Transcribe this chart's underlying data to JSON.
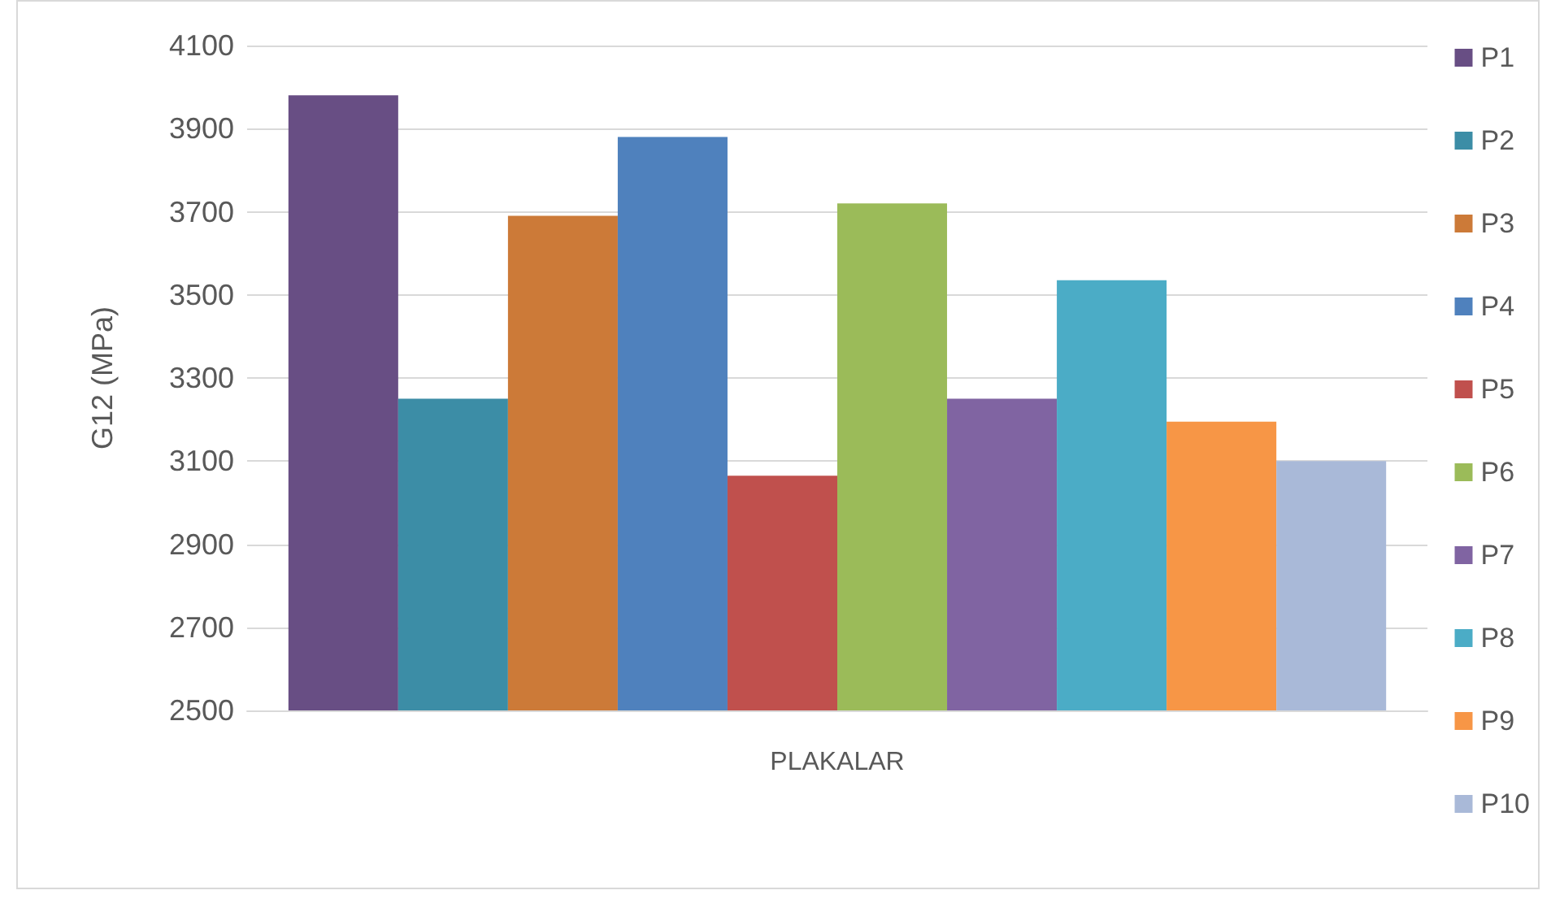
{
  "chart_data": {
    "type": "bar",
    "ylabel": "G12 (MPa)",
    "categories": [
      "PLAKALAR"
    ],
    "series": [
      {
        "name": "P1",
        "color": "#684e84",
        "values": [
          3980
        ]
      },
      {
        "name": "P2",
        "color": "#3c8da6",
        "values": [
          3250
        ]
      },
      {
        "name": "P3",
        "color": "#cc7a38",
        "values": [
          3690
        ]
      },
      {
        "name": "P4",
        "color": "#4f81bd",
        "values": [
          3880
        ]
      },
      {
        "name": "P5",
        "color": "#c0504d",
        "values": [
          3065
        ]
      },
      {
        "name": "P6",
        "color": "#9bbb59",
        "values": [
          3720
        ]
      },
      {
        "name": "P7",
        "color": "#8064a2",
        "values": [
          3250
        ]
      },
      {
        "name": "P8",
        "color": "#4bacc6",
        "values": [
          3535
        ]
      },
      {
        "name": "P9",
        "color": "#f79646",
        "values": [
          3195
        ]
      },
      {
        "name": "P10",
        "color": "#a9b9d8",
        "values": [
          3100
        ]
      }
    ],
    "ylim": [
      2500,
      4100
    ],
    "yticks": [
      2500,
      2700,
      2900,
      3100,
      3300,
      3500,
      3700,
      3900,
      4100
    ],
    "grid": "y",
    "legend": "right"
  }
}
